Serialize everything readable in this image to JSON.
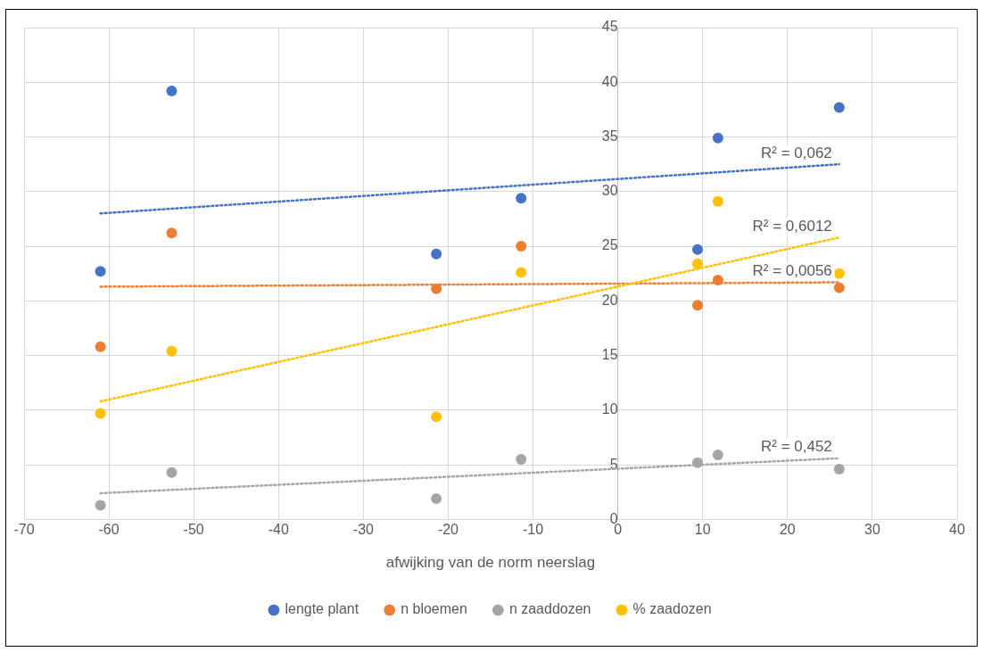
{
  "chart_data": {
    "type": "scatter",
    "xlabel": "afwijking van de norm neerslag",
    "xlim": [
      -70,
      40
    ],
    "xticks": [
      -70,
      -60,
      -50,
      -40,
      -30,
      -20,
      -10,
      0,
      10,
      20,
      30,
      40
    ],
    "ylim": [
      0,
      45
    ],
    "yticks": [
      0,
      5,
      10,
      15,
      20,
      25,
      30,
      35,
      40,
      45
    ],
    "grid": true,
    "legend": "bottom",
    "marker": "circle",
    "series": [
      {
        "name": "lengte plant",
        "color": "#4472c4",
        "x": [
          -61,
          -52.6,
          -21.4,
          -11.4,
          9.4,
          11.8,
          26.1
        ],
        "values": [
          22.7,
          39.2,
          24.3,
          29.4,
          24.7,
          34.9,
          37.7
        ]
      },
      {
        "name": "n bloemen",
        "color": "#ed7d31",
        "x": [
          -61,
          -52.6,
          -21.4,
          -11.4,
          9.4,
          11.8,
          26.1
        ],
        "values": [
          15.8,
          26.2,
          21.1,
          25.0,
          19.6,
          21.9,
          21.2
        ]
      },
      {
        "name": "n zaaddozen",
        "color": "#a5a5a5",
        "x": [
          -61,
          -52.6,
          -21.4,
          -11.4,
          9.4,
          11.8,
          26.1
        ],
        "values": [
          1.3,
          4.3,
          1.9,
          5.5,
          5.2,
          5.9,
          4.6
        ]
      },
      {
        "name": "% zaadozen",
        "color": "#ffc000",
        "x": [
          -61,
          -52.6,
          -21.4,
          -11.4,
          9.4,
          11.8,
          26.1
        ],
        "values": [
          9.7,
          15.4,
          9.4,
          22.6,
          23.4,
          29.1,
          22.5
        ]
      },
      {
        "type": "line",
        "marker": "none",
        "color": "#4472c4",
        "line_style": "dotted",
        "x": [
          -61,
          26.1
        ],
        "values": [
          28.0,
          32.5
        ]
      },
      {
        "type": "line",
        "marker": "none",
        "color": "#ffc000",
        "line_style": "dotted",
        "x": [
          -61,
          26.1
        ],
        "values": [
          10.8,
          25.8
        ]
      },
      {
        "type": "line",
        "marker": "none",
        "color": "#ed7d31",
        "line_style": "dotted",
        "x": [
          -61,
          26.1
        ],
        "values": [
          21.3,
          21.7
        ]
      },
      {
        "type": "line",
        "marker": "none",
        "color": "#a5a5a5",
        "line_style": "dotted",
        "x": [
          -61,
          26.1
        ],
        "values": [
          2.4,
          5.6
        ]
      }
    ],
    "annotations": [
      "R² = 0,062",
      "R² = 0,6012",
      "R² = 0,0056",
      "R² = 0,452"
    ]
  }
}
